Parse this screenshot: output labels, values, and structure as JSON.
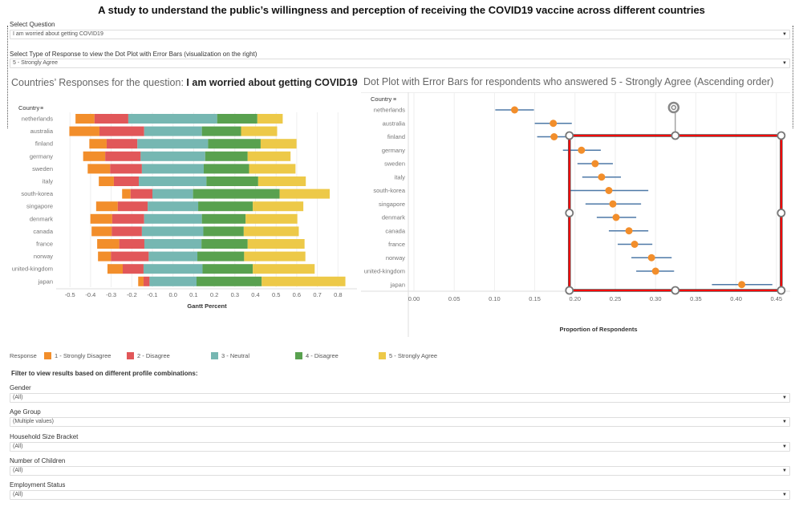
{
  "title": "A study to understand the public’s willingness and perception of receiving the COVID19 vaccine across different countries",
  "question_select": {
    "label": "Select Question",
    "value": "I am worried about getting COVID19"
  },
  "response_select": {
    "label": "Select Type of Response to view the Dot Plot with Error Bars (visualization on the right)",
    "value": "5 - Strongly Agree"
  },
  "left_chart_title": {
    "prefix": "Countries’ Responses for the question: ",
    "question": "I am worried about getting COVID19"
  },
  "right_chart_title": "Dot Plot with Error Bars for respondents who answered 5 - Strongly Agree (Ascending order)",
  "colors": {
    "strongly_disagree": "#f28e2b",
    "disagree": "#e15759",
    "neutral": "#76b7b2",
    "agree": "#59a14f",
    "strongly_agree": "#edc948",
    "dot": "#f28e2b",
    "error_bar": "#4e79a7",
    "selection": "#ff0000"
  },
  "icons": {
    "sort": "sort-descending-icon",
    "dropdown": "chevron-down-icon",
    "rotate": "rotate-handle-icon"
  },
  "chart_data": [
    {
      "type": "bar",
      "subtype": "diverging-stacked-gantt",
      "y_header": "Country",
      "xlabel": "Gantt Percent",
      "xlim": [
        -0.55,
        0.85
      ],
      "xticks": [
        "-0.5",
        "-0.4",
        "-0.3",
        "-0.2",
        "-0.1",
        "0.0",
        "0.1",
        "0.2",
        "0.3",
        "0.4",
        "0.5",
        "0.6",
        "0.7",
        "0.8"
      ],
      "xtick_values": [
        -0.5,
        -0.4,
        -0.3,
        -0.2,
        -0.1,
        0,
        0.1,
        0.2,
        0.3,
        0.4,
        0.5,
        0.6,
        0.7,
        0.8
      ],
      "grid": true,
      "categories": [
        "netherlands",
        "australia",
        "finland",
        "germany",
        "sweden",
        "italy",
        "south-korea",
        "singapore",
        "denmark",
        "canada",
        "france",
        "norway",
        "united-kingdom",
        "japan"
      ],
      "segment_boundaries": [
        [
          -0.473,
          -0.381,
          -0.217,
          0.214,
          0.409,
          0.532
        ],
        [
          -0.503,
          -0.357,
          -0.14,
          0.14,
          0.33,
          0.505
        ],
        [
          -0.406,
          -0.322,
          -0.173,
          0.17,
          0.425,
          0.599
        ],
        [
          -0.436,
          -0.329,
          -0.157,
          0.156,
          0.362,
          0.57
        ],
        [
          -0.414,
          -0.305,
          -0.151,
          0.149,
          0.369,
          0.594
        ],
        [
          -0.36,
          -0.287,
          -0.166,
          0.162,
          0.413,
          0.644
        ],
        [
          -0.247,
          -0.206,
          -0.1,
          0.097,
          0.517,
          0.76
        ],
        [
          -0.373,
          -0.268,
          -0.123,
          0.122,
          0.387,
          0.632
        ],
        [
          -0.401,
          -0.295,
          -0.14,
          0.14,
          0.352,
          0.603
        ],
        [
          -0.395,
          -0.297,
          -0.151,
          0.147,
          0.343,
          0.61
        ],
        [
          -0.368,
          -0.261,
          -0.139,
          0.138,
          0.362,
          0.638
        ],
        [
          -0.364,
          -0.301,
          -0.118,
          0.118,
          0.345,
          0.642
        ],
        [
          -0.318,
          -0.244,
          -0.143,
          0.143,
          0.387,
          0.687
        ],
        [
          -0.169,
          -0.143,
          -0.114,
          0.114,
          0.43,
          0.836
        ]
      ],
      "legend": {
        "title": "Response",
        "placement": "bottom",
        "entries": [
          "1 - Strongly Disagree",
          "2 - Disagree",
          "3 - Neutral",
          "4 - Disagree",
          "5 - Strongly Agree"
        ]
      }
    },
    {
      "type": "scatter",
      "subtype": "dot-plot-with-error-bars",
      "y_header": "Country",
      "xlabel": "Proportion of Respondents",
      "xlim": [
        0,
        0.45
      ],
      "xticks": [
        "0.00",
        "0.05",
        "0.10",
        "0.15",
        "0.20",
        "0.25",
        "0.30",
        "0.35",
        "0.40",
        "0.45"
      ],
      "xtick_values": [
        0,
        0.05,
        0.1,
        0.15,
        0.2,
        0.25,
        0.3,
        0.35,
        0.4,
        0.45
      ],
      "grid": true,
      "categories": [
        "netherlands",
        "australia",
        "finland",
        "germany",
        "sweden",
        "italy",
        "south-korea",
        "singapore",
        "denmark",
        "canada",
        "france",
        "norway",
        "united-kingdom",
        "japan"
      ],
      "values": [
        0.125,
        0.173,
        0.174,
        0.208,
        0.225,
        0.233,
        0.242,
        0.247,
        0.251,
        0.267,
        0.274,
        0.295,
        0.3,
        0.407
      ],
      "lower": [
        0.101,
        0.15,
        0.153,
        0.185,
        0.203,
        0.209,
        0.193,
        0.213,
        0.227,
        0.242,
        0.253,
        0.27,
        0.276,
        0.37
      ],
      "upper": [
        0.149,
        0.196,
        0.197,
        0.232,
        0.247,
        0.257,
        0.291,
        0.282,
        0.276,
        0.291,
        0.296,
        0.32,
        0.323,
        0.445
      ],
      "selection_box_x_range": [
        0.2,
        0.46
      ]
    }
  ],
  "filters": {
    "heading": "Filter to view results based on different profile combinations:",
    "items": [
      {
        "label": "Gender",
        "value": "(All)"
      },
      {
        "label": "Age Group",
        "value": "(Multiple values)"
      },
      {
        "label": "Household Size Bracket",
        "value": "(All)"
      },
      {
        "label": "Number of Children",
        "value": "(All)"
      },
      {
        "label": "Employment Status",
        "value": "(All)"
      }
    ]
  }
}
